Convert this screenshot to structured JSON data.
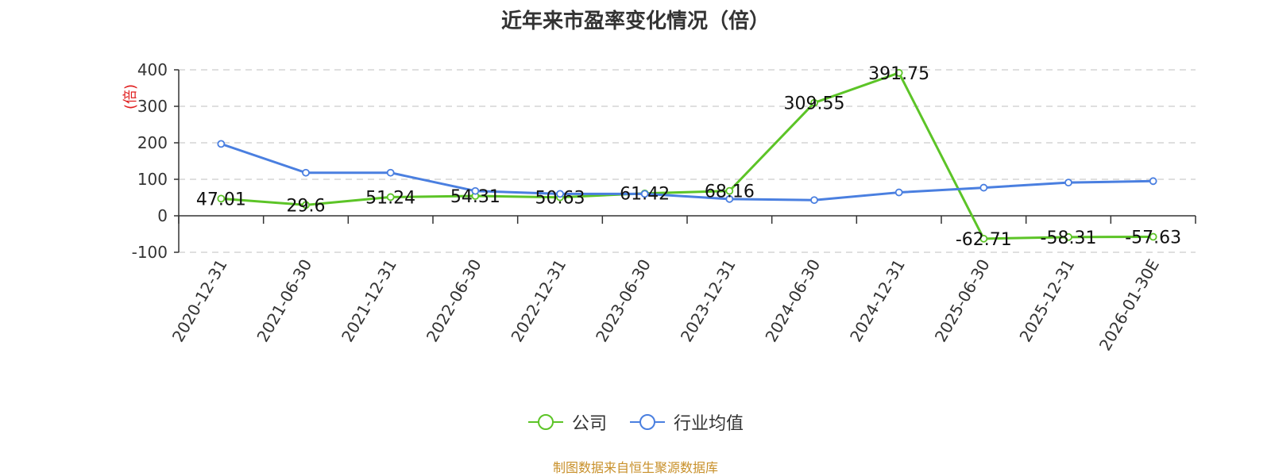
{
  "chart_data": {
    "type": "line",
    "title": "近年来市盈率变化情况（倍）",
    "ylabel": "(倍)",
    "ylim": [
      -100,
      400
    ],
    "yticks": [
      -100,
      0,
      100,
      200,
      300,
      400
    ],
    "grid": true,
    "legend_position": "bottom-center",
    "x": [
      "2020-12-31",
      "2021-06-30",
      "2021-12-31",
      "2022-06-30",
      "2022-12-31",
      "2023-06-30",
      "2023-12-31",
      "2024-06-30",
      "2024-12-31",
      "2025-06-30",
      "2025-12-31",
      "2026-01-30E"
    ],
    "series": [
      {
        "name": "公司",
        "color": "#5cc427",
        "values": [
          47.01,
          29.6,
          51.24,
          54.31,
          50.63,
          61.42,
          68.16,
          309.55,
          391.75,
          -62.71,
          -58.31,
          -57.63
        ],
        "labels": [
          "47.01",
          "29.6",
          "51.24",
          "54.31",
          "50.63",
          "61.42",
          "68.16",
          "309.55",
          "391.75",
          "-62.71",
          "-58.31",
          "-57.63"
        ]
      },
      {
        "name": "行业均值",
        "color": "#4a7fe0",
        "values": [
          197,
          118,
          118,
          68,
          60,
          60,
          46,
          43,
          64,
          77,
          91,
          95
        ]
      }
    ]
  },
  "source_note": "制图数据来自恒生聚源数据库"
}
